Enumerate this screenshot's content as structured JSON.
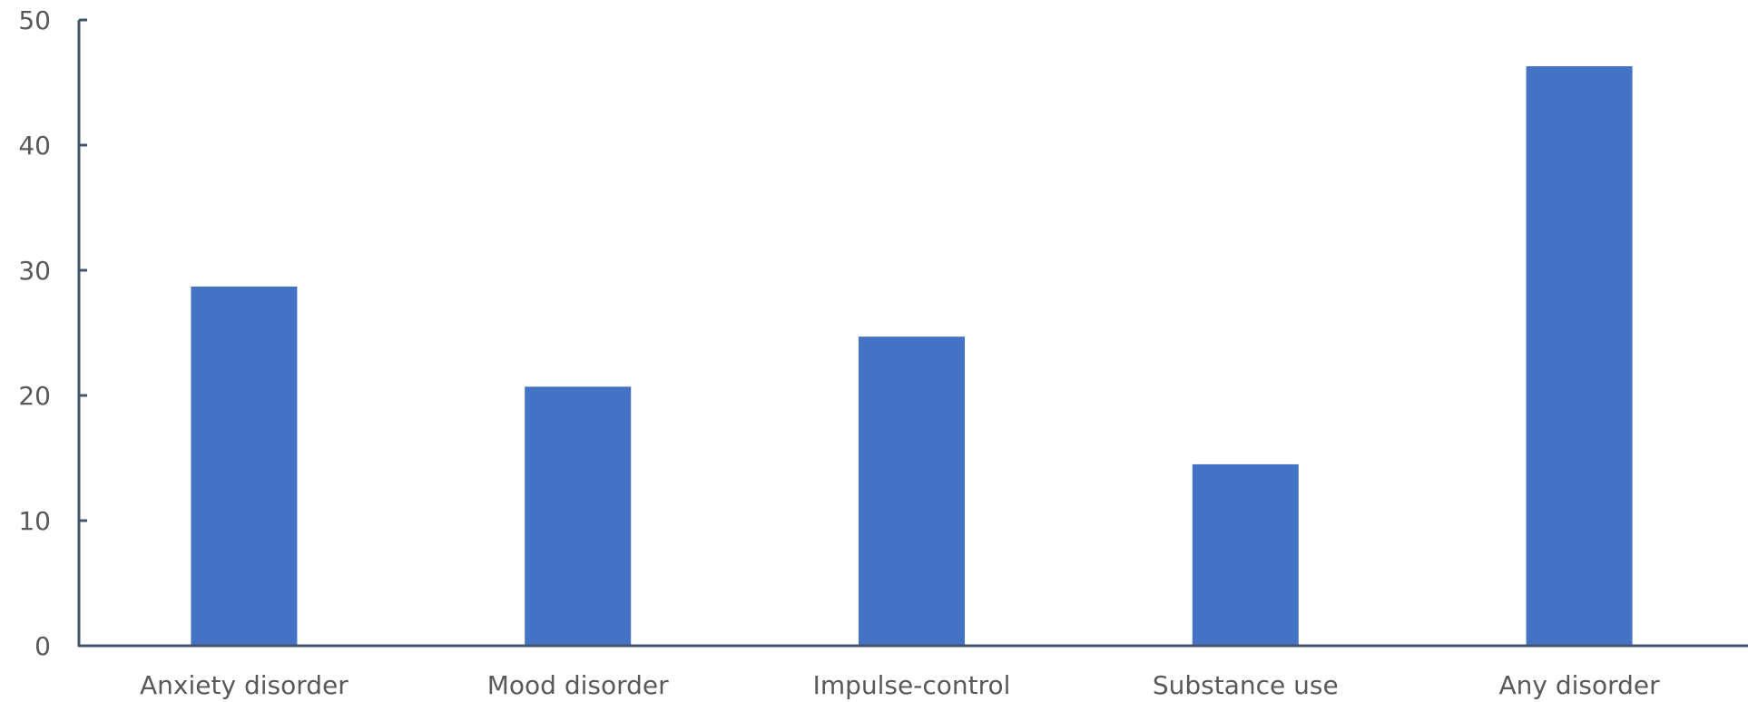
{
  "chart_data": {
    "type": "bar",
    "categories": [
      "Anxiety disorder",
      "Mood disorder",
      "Impulse-control",
      "Substance use",
      "Any disorder"
    ],
    "series": [
      {
        "values": [
          28.7,
          20.7,
          24.7,
          14.5,
          46.3
        ],
        "color": "#4472c4"
      }
    ],
    "title": "",
    "xlabel": "",
    "ylabel": "",
    "ylim": [
      0,
      50
    ],
    "yticks": [
      0,
      10,
      20,
      30,
      40,
      50
    ],
    "grid": false,
    "legend": "none"
  }
}
